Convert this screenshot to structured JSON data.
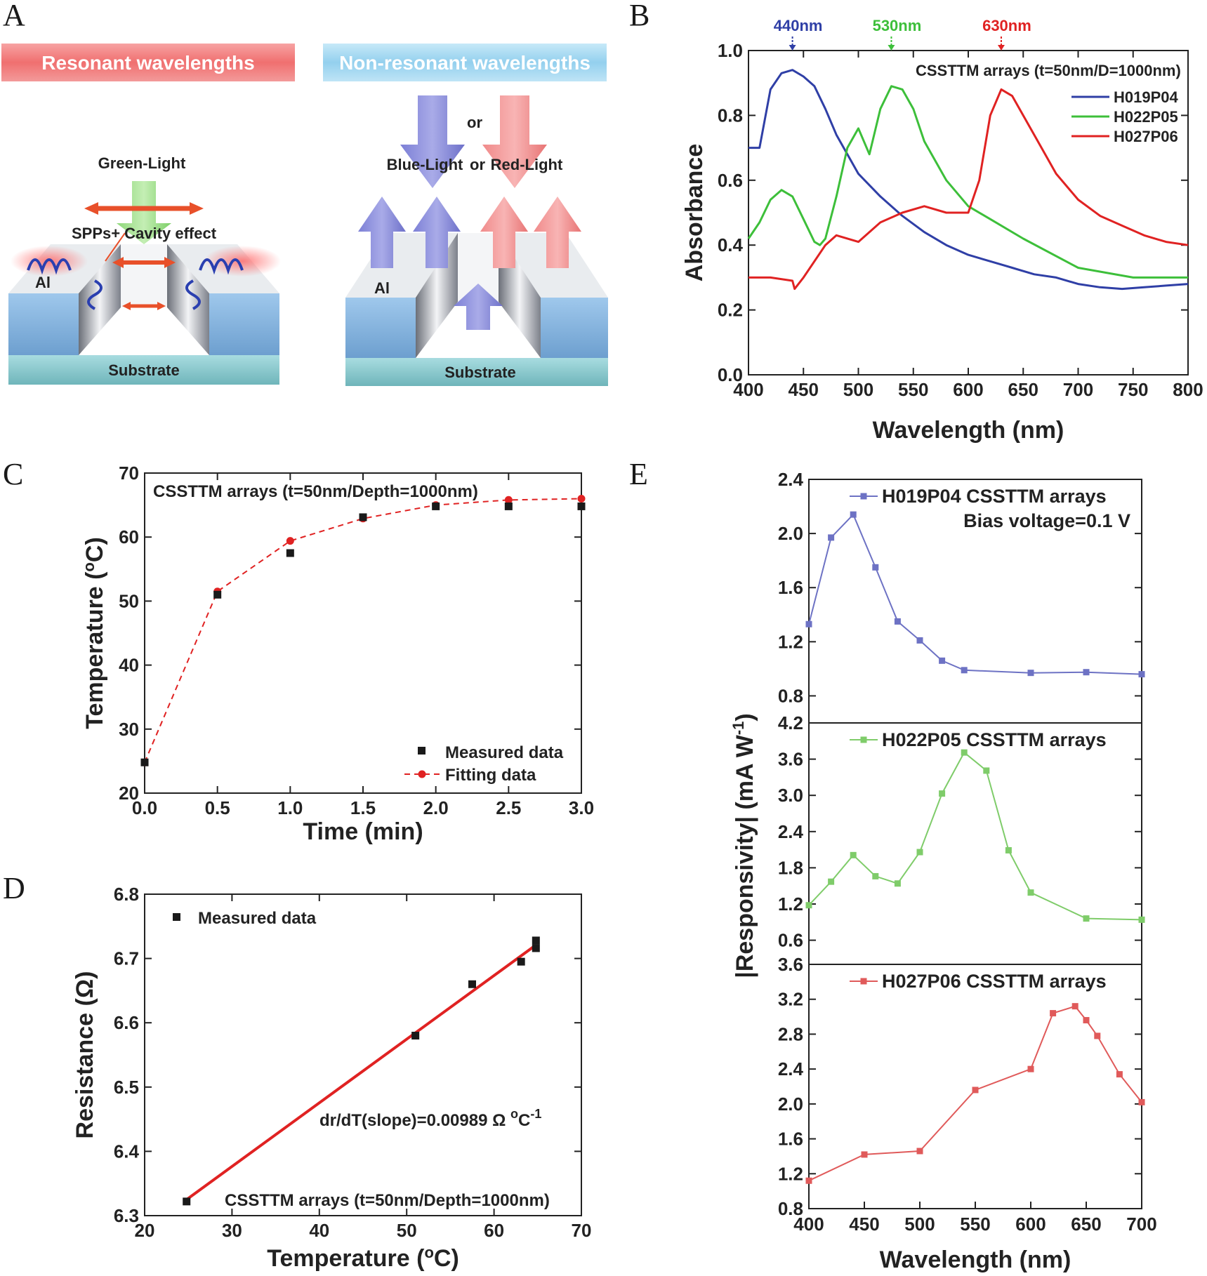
{
  "panels": {
    "A": {
      "letter": "A",
      "resonant_banner": "Resonant wavelengths",
      "nonresonant_banner": "Non-resonant wavelengths",
      "green_light": "Green-Light",
      "spp_label": "SPPs+ Cavity effect",
      "al_left": "Al",
      "al_right": "Al",
      "substrate_left": "Substrate",
      "substrate_right": "Substrate",
      "or_top": "or",
      "blue_light": "Blue-Light",
      "or_mid": "or",
      "red_light": "Red-Light"
    },
    "B": {
      "letter": "B"
    },
    "C": {
      "letter": "C"
    },
    "D": {
      "letter": "D"
    },
    "E": {
      "letter": "E"
    }
  },
  "colors": {
    "blue": "#2f3fa6",
    "green": "#3dbf3a",
    "red": "#e02222",
    "black": "#1a1a1a",
    "red_banner": "#f07a7a",
    "blue_banner": "#a6d8f0"
  },
  "chart_data": [
    {
      "id": "B",
      "type": "line",
      "title": "CSSTTM arrays (t=50nm/D=1000nm)",
      "xlabel": "Wavelength (nm)",
      "ylabel": "Absorbance",
      "xlim": [
        400,
        800
      ],
      "ylim": [
        0.0,
        1.0
      ],
      "xticks": [
        "400",
        "450",
        "500",
        "550",
        "600",
        "650",
        "700",
        "750",
        "800"
      ],
      "yticks": [
        "0.0",
        "0.2",
        "0.4",
        "0.6",
        "0.8",
        "1.0"
      ],
      "markers_top": [
        {
          "label": "440nm",
          "x": 440,
          "color": "#2f3fa6"
        },
        {
          "label": "530nm",
          "x": 530,
          "color": "#3dbf3a"
        },
        {
          "label": "630nm",
          "x": 630,
          "color": "#e02222"
        }
      ],
      "series": [
        {
          "name": "H019P04",
          "color": "#2f3fa6",
          "x": [
            400,
            410,
            420,
            430,
            440,
            450,
            460,
            470,
            480,
            500,
            520,
            540,
            560,
            580,
            600,
            620,
            640,
            660,
            680,
            700,
            720,
            740,
            760,
            780,
            800
          ],
          "y": [
            0.7,
            0.7,
            0.88,
            0.93,
            0.94,
            0.92,
            0.89,
            0.82,
            0.74,
            0.62,
            0.55,
            0.49,
            0.44,
            0.4,
            0.37,
            0.35,
            0.33,
            0.31,
            0.3,
            0.28,
            0.27,
            0.265,
            0.27,
            0.275,
            0.28
          ]
        },
        {
          "name": "H022P05",
          "color": "#3dbf3a",
          "x": [
            400,
            410,
            420,
            430,
            440,
            450,
            460,
            465,
            470,
            480,
            490,
            500,
            510,
            520,
            530,
            540,
            550,
            560,
            580,
            600,
            620,
            650,
            700,
            750,
            800
          ],
          "y": [
            0.42,
            0.47,
            0.54,
            0.57,
            0.55,
            0.48,
            0.41,
            0.4,
            0.42,
            0.55,
            0.7,
            0.76,
            0.68,
            0.82,
            0.89,
            0.88,
            0.82,
            0.72,
            0.6,
            0.52,
            0.48,
            0.42,
            0.33,
            0.3,
            0.3
          ]
        },
        {
          "name": "H027P06",
          "color": "#e02222",
          "x": [
            400,
            420,
            440,
            442,
            450,
            470,
            480,
            500,
            520,
            540,
            560,
            580,
            600,
            610,
            620,
            630,
            640,
            660,
            680,
            700,
            720,
            740,
            760,
            780,
            800
          ],
          "y": [
            0.3,
            0.3,
            0.29,
            0.265,
            0.3,
            0.4,
            0.43,
            0.41,
            0.47,
            0.5,
            0.52,
            0.5,
            0.5,
            0.6,
            0.8,
            0.88,
            0.86,
            0.74,
            0.62,
            0.54,
            0.49,
            0.46,
            0.43,
            0.41,
            0.4
          ]
        }
      ]
    },
    {
      "id": "C",
      "type": "scatter",
      "title": "CSSTTM arrays (t=50nm/Depth=1000nm)",
      "xlabel": "Time (min)",
      "ylabel": "Temperature (°C)",
      "ylabel_main": "Temperature (",
      "ylabel_sup": "o",
      "ylabel_end": "C)",
      "xlim": [
        0.0,
        3.0
      ],
      "ylim": [
        20,
        70
      ],
      "xticks": [
        "0.0",
        "0.5",
        "1.0",
        "1.5",
        "2.0",
        "2.5",
        "3.0"
      ],
      "yticks": [
        "20",
        "30",
        "40",
        "50",
        "60",
        "70"
      ],
      "series": [
        {
          "name": "Measured data",
          "marker": "square",
          "color": "#1a1a1a",
          "x": [
            0.0,
            0.5,
            1.0,
            1.5,
            2.0,
            2.5,
            3.0
          ],
          "y": [
            24.8,
            51.0,
            57.5,
            63.1,
            64.8,
            64.8,
            64.8
          ]
        },
        {
          "name": "Fitting data",
          "marker": "circle",
          "line": "dashed",
          "color": "#e02222",
          "x": [
            0.0,
            0.5,
            1.0,
            1.5,
            2.0,
            2.5,
            3.0
          ],
          "y": [
            24.8,
            51.5,
            59.4,
            62.9,
            65.0,
            65.8,
            66.0
          ]
        }
      ]
    },
    {
      "id": "D",
      "type": "scatter",
      "title": "CSSTTM arrays (t=50nm/Depth=1000nm)",
      "annotation": "dr/dT(slope)=0.00989 Ω °C",
      "annotation_main": "dr/dT(slope)=0.00989 Ω ",
      "annotation_deg": "o",
      "annotation_unit": "C",
      "annotation_exp": "-1",
      "xlabel": "Temperature (°C)",
      "xlabel_main": "Temperature (",
      "xlabel_sup": "o",
      "xlabel_end": "C)",
      "ylabel": "Resistance (Ω)",
      "xlim": [
        20,
        70
      ],
      "ylim": [
        6.3,
        6.8
      ],
      "xticks": [
        "20",
        "30",
        "40",
        "50",
        "60",
        "70"
      ],
      "yticks": [
        "6.3",
        "6.4",
        "6.5",
        "6.6",
        "6.7",
        "6.8"
      ],
      "series": [
        {
          "name": "Measured data",
          "marker": "square",
          "color": "#1a1a1a",
          "x": [
            24.8,
            51.0,
            57.5,
            63.1,
            64.8,
            64.8
          ],
          "y": [
            6.322,
            6.58,
            6.66,
            6.695,
            6.728,
            6.716
          ]
        }
      ],
      "fit_line": {
        "color": "#e02222",
        "x": [
          24.8,
          64.8
        ],
        "y": [
          6.325,
          6.721
        ]
      }
    },
    {
      "id": "E",
      "type": "line",
      "xlabel": "Wavelength (nm)",
      "ylabel": "|Responsivity| (mA W-1)",
      "ylabel_main": "|Responsivity| (mA W",
      "ylabel_sup": "-1",
      "ylabel_end": ")",
      "xlim": [
        400,
        700
      ],
      "xticks": [
        "400",
        "450",
        "500",
        "550",
        "600",
        "650",
        "700"
      ],
      "subplots": [
        {
          "name": "H019P04 CSSTTM arrays",
          "note": "Bias voltage=0.1 V",
          "color": "#6d72c4",
          "ylim": [
            0.6,
            2.4
          ],
          "yticks": [
            "0.8",
            "1.2",
            "1.6",
            "2.0",
            "2.4"
          ],
          "x": [
            400,
            420,
            440,
            460,
            480,
            500,
            520,
            540,
            600,
            650,
            700
          ],
          "y": [
            1.33,
            1.97,
            2.14,
            1.75,
            1.35,
            1.21,
            1.06,
            0.99,
            0.97,
            0.975,
            0.96
          ]
        },
        {
          "name": "H022P05 CSSTTM arrays",
          "color": "#7fcc6a",
          "ylim": [
            0.2,
            4.2
          ],
          "yticks": [
            "0.6",
            "1.2",
            "1.8",
            "2.4",
            "3.0",
            "3.6",
            "4.2"
          ],
          "x": [
            400,
            420,
            440,
            460,
            480,
            500,
            520,
            540,
            560,
            580,
            600,
            650,
            700
          ],
          "y": [
            1.18,
            1.57,
            2.01,
            1.66,
            1.54,
            2.06,
            3.03,
            3.71,
            3.41,
            2.09,
            1.39,
            0.96,
            0.94
          ]
        },
        {
          "name": "H027P06 CSSTTM arrays",
          "color": "#e05a5a",
          "ylim": [
            0.8,
            3.6
          ],
          "yticks": [
            "0.8",
            "1.2",
            "1.6",
            "2.0",
            "2.4",
            "2.8",
            "3.2",
            "3.6"
          ],
          "x": [
            400,
            450,
            500,
            550,
            600,
            620,
            640,
            650,
            660,
            680,
            700
          ],
          "y": [
            1.12,
            1.42,
            1.46,
            2.16,
            2.4,
            3.04,
            3.12,
            2.96,
            2.78,
            2.34,
            2.02
          ]
        }
      ]
    }
  ]
}
